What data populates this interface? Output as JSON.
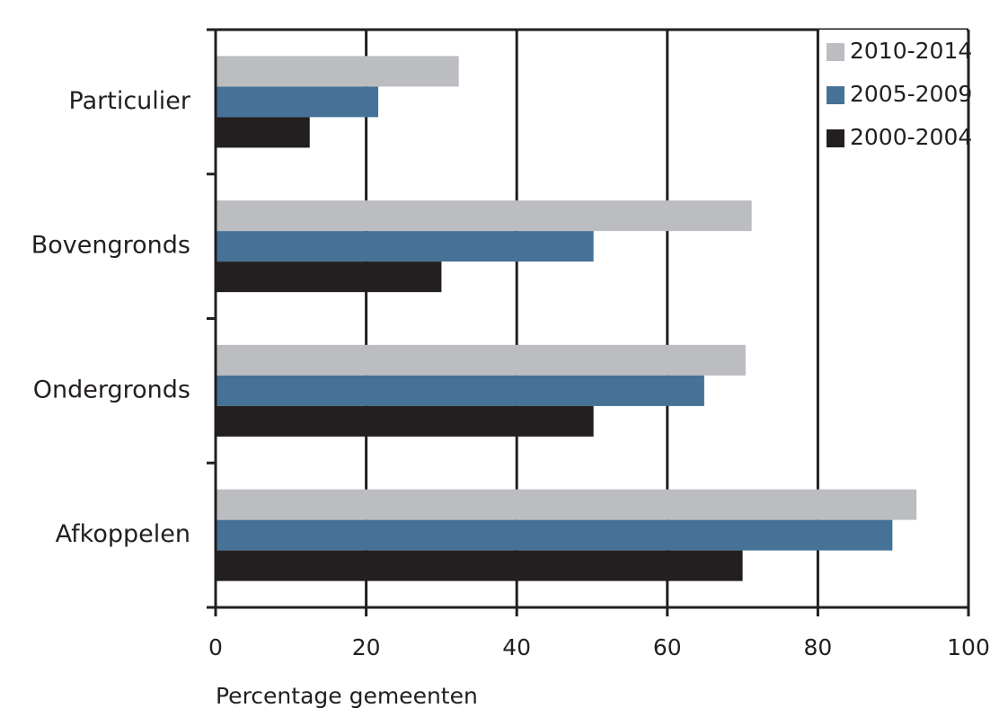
{
  "chart_data": {
    "type": "hbar",
    "x_label": "Percentage gemeenten",
    "categories": [
      "Particulier",
      "Bovengronds",
      "Ondergronds",
      "Afkoppelen"
    ],
    "series": [
      {
        "name": "2010-2014",
        "color": "#bcbdc1",
        "values": [
          32.3,
          71.2,
          70.4,
          93.1
        ]
      },
      {
        "name": "2005-2009",
        "color": "#457296",
        "values": [
          21.6,
          50.2,
          64.9,
          89.9
        ]
      },
      {
        "name": "2000-2004",
        "color": "#231f20",
        "values": [
          12.5,
          30,
          50.2,
          70
        ]
      }
    ],
    "xlim": [
      0,
      100
    ],
    "xticks": [
      0,
      20,
      40,
      60,
      80,
      100
    ],
    "grid": true,
    "legend": "upper right"
  }
}
